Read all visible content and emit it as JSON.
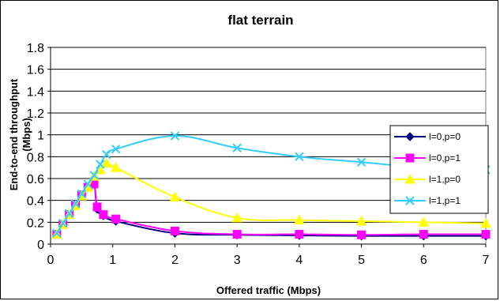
{
  "chart_data": {
    "type": "line",
    "title": "flat terrain",
    "xlabel": "Offered traffic (Mbps)",
    "ylabel": "End-to-end throughput (Mbps)",
    "xlim": [
      0,
      7
    ],
    "ylim": [
      0,
      1.8
    ],
    "xticks": [
      0,
      1,
      2,
      3,
      4,
      5,
      6,
      7
    ],
    "yticks": [
      0,
      0.2,
      0.4,
      0.6,
      0.8,
      1,
      1.2,
      1.4,
      1.6,
      1.8
    ],
    "grid": "horizontal",
    "legend": "right",
    "series": [
      {
        "name": "l=0,p=0",
        "color": "#000080",
        "marker": "diamond",
        "points": [
          [
            0.1,
            0.09
          ],
          [
            0.2,
            0.18
          ],
          [
            0.3,
            0.27
          ],
          [
            0.4,
            0.36
          ],
          [
            0.5,
            0.44
          ],
          [
            0.6,
            0.52
          ],
          [
            0.7,
            0.55
          ],
          [
            0.75,
            0.32
          ],
          [
            0.85,
            0.26
          ],
          [
            1.05,
            0.21
          ],
          [
            2,
            0.1
          ],
          [
            3,
            0.085
          ],
          [
            4,
            0.08
          ],
          [
            5,
            0.075
          ],
          [
            6,
            0.075
          ],
          [
            7,
            0.075
          ]
        ]
      },
      {
        "name": "l=0,p=1",
        "color": "#FF00FF",
        "marker": "square",
        "points": [
          [
            0.1,
            0.09
          ],
          [
            0.2,
            0.18
          ],
          [
            0.3,
            0.27
          ],
          [
            0.4,
            0.36
          ],
          [
            0.5,
            0.45
          ],
          [
            0.6,
            0.52
          ],
          [
            0.7,
            0.55
          ],
          [
            0.75,
            0.34
          ],
          [
            0.85,
            0.27
          ],
          [
            1.05,
            0.23
          ],
          [
            2,
            0.12
          ],
          [
            3,
            0.09
          ],
          [
            4,
            0.09
          ],
          [
            5,
            0.085
          ],
          [
            6,
            0.09
          ],
          [
            7,
            0.09
          ]
        ]
      },
      {
        "name": "l=1,p=0",
        "color": "#FFFF00",
        "marker": "triangle",
        "points": [
          [
            0.1,
            0.09
          ],
          [
            0.2,
            0.18
          ],
          [
            0.3,
            0.27
          ],
          [
            0.4,
            0.35
          ],
          [
            0.5,
            0.44
          ],
          [
            0.6,
            0.52
          ],
          [
            0.7,
            0.62
          ],
          [
            0.8,
            0.68
          ],
          [
            0.9,
            0.74
          ],
          [
            1.05,
            0.7
          ],
          [
            2,
            0.43
          ],
          [
            3,
            0.24
          ],
          [
            4,
            0.22
          ],
          [
            5,
            0.21
          ],
          [
            6,
            0.2
          ],
          [
            7,
            0.19
          ]
        ]
      },
      {
        "name": "l=1,p=1",
        "color": "#33CCFF",
        "marker": "x",
        "points": [
          [
            0.1,
            0.1
          ],
          [
            0.2,
            0.19
          ],
          [
            0.3,
            0.28
          ],
          [
            0.4,
            0.37
          ],
          [
            0.5,
            0.46
          ],
          [
            0.6,
            0.55
          ],
          [
            0.7,
            0.63
          ],
          [
            0.8,
            0.73
          ],
          [
            0.9,
            0.82
          ],
          [
            1.05,
            0.87
          ],
          [
            2,
            0.99
          ],
          [
            3,
            0.88
          ],
          [
            4,
            0.8
          ],
          [
            5,
            0.75
          ],
          [
            6,
            0.7
          ],
          [
            7,
            0.68
          ]
        ]
      }
    ]
  }
}
